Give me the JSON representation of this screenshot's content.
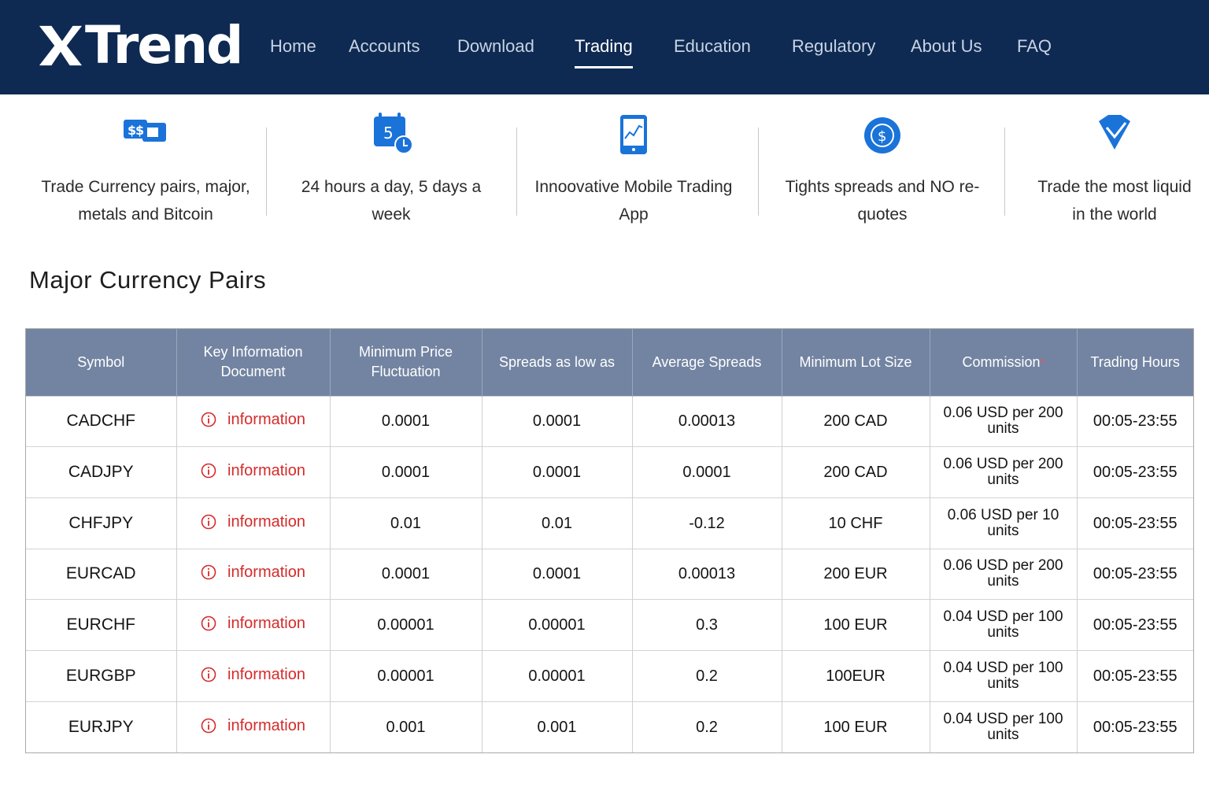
{
  "brand": {
    "logo_text": "Trend",
    "logo_mark": "X"
  },
  "nav": {
    "items": [
      {
        "label": "Home"
      },
      {
        "label": "Accounts"
      },
      {
        "label": "Download"
      },
      {
        "label": "Trading",
        "active": true
      },
      {
        "label": "Education"
      },
      {
        "label": "Regulatory"
      },
      {
        "label": "About Us"
      },
      {
        "label": "FAQ"
      }
    ]
  },
  "features": [
    {
      "icon": "currency-exchange-icon",
      "line1": "Trade Currency pairs, major,",
      "line2": "metals and Bitcoin"
    },
    {
      "icon": "calendar-clock-icon",
      "line1": "24 hours a day, 5 days a",
      "line2": "week"
    },
    {
      "icon": "mobile-chart-icon",
      "line1": "Innoovative Mobile Trading",
      "line2": "App"
    },
    {
      "icon": "dollar-coin-icon",
      "line1": "Tights spreads and NO re-",
      "line2": "quotes"
    },
    {
      "icon": "diamond-check-icon",
      "line1": "Trade the most liquid",
      "line2": "in the world"
    }
  ],
  "section_title": "Major Currency Pairs",
  "table": {
    "headers": [
      {
        "line1": "Symbol",
        "line2": ""
      },
      {
        "line1": "Key Information",
        "line2": "Document"
      },
      {
        "line1": "Minimum Price",
        "line2": "Fluctuation"
      },
      {
        "line1": "Spreads as low as",
        "line2": ""
      },
      {
        "line1": "Average Spreads",
        "line2": ""
      },
      {
        "line1": "Minimum Lot Size",
        "line2": ""
      },
      {
        "line1": "Commission",
        "line2": "",
        "marker": "*"
      },
      {
        "line1": "Trading Hours",
        "line2": ""
      }
    ],
    "info_label": "information",
    "rows": [
      {
        "symbol": "CADCHF",
        "min_fluct": "0.0001",
        "spread_low": "0.0001",
        "avg_spread": "0.00013",
        "min_lot": "200 CAD",
        "commission_l1": "0.06 USD per 200",
        "commission_l2": "units",
        "hours": "00:05-23:55"
      },
      {
        "symbol": "CADJPY",
        "min_fluct": "0.0001",
        "spread_low": "0.0001",
        "avg_spread": "0.0001",
        "min_lot": "200 CAD",
        "commission_l1": "0.06 USD per 200",
        "commission_l2": "units",
        "hours": "00:05-23:55"
      },
      {
        "symbol": "CHFJPY",
        "min_fluct": "0.01",
        "spread_low": "0.01",
        "avg_spread": "-0.12",
        "min_lot": "10 CHF",
        "commission_l1": "0.06 USD per 10 units",
        "commission_l2": "",
        "hours": "00:05-23:55"
      },
      {
        "symbol": "EURCAD",
        "min_fluct": "0.0001",
        "spread_low": "0.0001",
        "avg_spread": "0.00013",
        "min_lot": "200 EUR",
        "commission_l1": "0.06 USD per 200",
        "commission_l2": "units",
        "hours": "00:05-23:55"
      },
      {
        "symbol": "EURCHF",
        "min_fluct": "0.00001",
        "spread_low": "0.00001",
        "avg_spread": "0.3",
        "min_lot": "100 EUR",
        "commission_l1": "0.04 USD per 100",
        "commission_l2": "units",
        "hours": "00:05-23:55"
      },
      {
        "symbol": "EURGBP",
        "min_fluct": "0.00001",
        "spread_low": "0.00001",
        "avg_spread": "0.2",
        "min_lot": "100EUR",
        "commission_l1": "0.04 USD per 100",
        "commission_l2": "units",
        "hours": "00:05-23:55"
      },
      {
        "symbol": "EURJPY",
        "min_fluct": "0.001",
        "spread_low": "0.001",
        "avg_spread": "0.2",
        "min_lot": "100 EUR",
        "commission_l1": "0.04 USD per 100",
        "commission_l2": "units",
        "hours": "00:05-23:55"
      }
    ]
  },
  "colors": {
    "header_bg": "#0e2a52",
    "icon_blue": "#1a73d9",
    "table_header_bg": "#7384a2",
    "info_red": "#d62a2a"
  }
}
